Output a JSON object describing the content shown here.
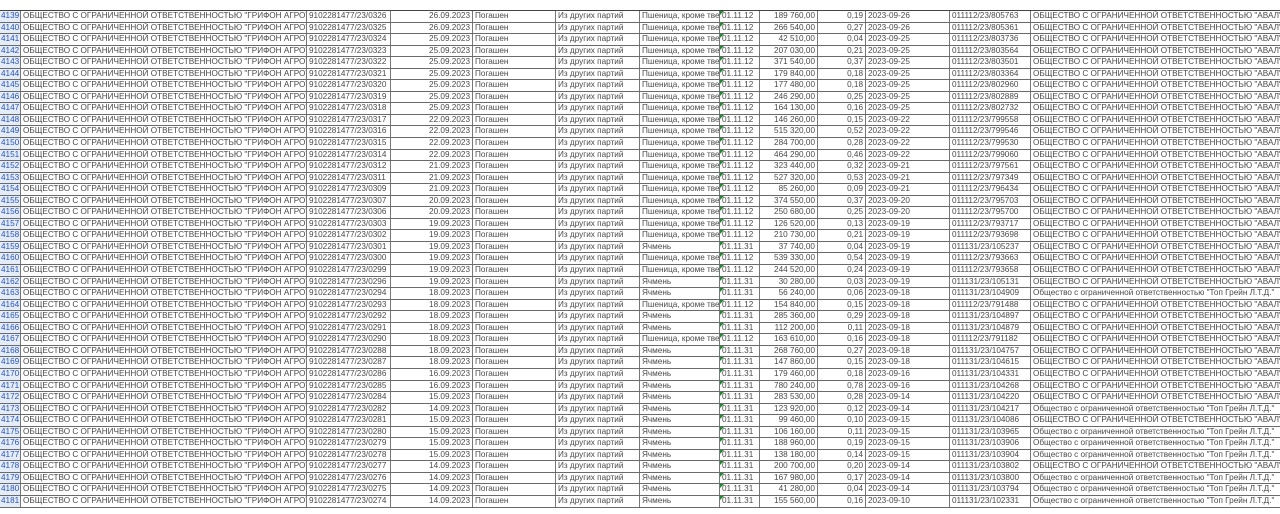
{
  "accent_colors": {
    "row_header_text": "#2a54b8",
    "row_header_bg": "#e4ecf7",
    "error_indicator": "#1e8a2e"
  },
  "rows": [
    [
      "4139",
      "ОБЩЕСТВО С ОГРАНИЧЕННОЙ ОТВЕТСТВЕННОСТЬЮ \"ГРИФОН АГРОТРАНС\"",
      "9102281477/23/0326",
      "26.09.2023",
      "Погашен",
      "Из других партий",
      "Пшеница, кроме тве",
      "01.11.12",
      "189 760,00",
      "0,19",
      "2023-09-26",
      "011112/23/805763",
      "ОБЩЕСТВО С ОГРАНИЧЕННОЙ ОТВЕТСТВЕННОСТЬЮ \"АВАЛ\""
    ],
    [
      "4140",
      "ОБЩЕСТВО С ОГРАНИЧЕННОЙ ОТВЕТСТВЕННОСТЬЮ \"ГРИФОН АГРОТРАНС\"",
      "9102281477/23/0325",
      "26.09.2023",
      "Погашен",
      "Из других партий",
      "Пшеница, кроме тве",
      "01.11.12",
      "266 540,00",
      "0,27",
      "2023-09-26",
      "011112/23/805361",
      "ОБЩЕСТВО С ОГРАНИЧЕННОЙ ОТВЕТСТВЕННОСТЬЮ \"АВАЛ\""
    ],
    [
      "4141",
      "ОБЩЕСТВО С ОГРАНИЧЕННОЙ ОТВЕТСТВЕННОСТЬЮ \"ГРИФОН АГРОТРАНС\"",
      "9102281477/23/0324",
      "25.09.2023",
      "Погашен",
      "Из других партий",
      "Пшеница, кроме тве",
      "01.11.12",
      "42 510,00",
      "0,04",
      "2023-09-25",
      "011112/23/803736",
      "ОБЩЕСТВО С ОГРАНИЧЕННОЙ ОТВЕТСТВЕННОСТЬЮ \"АВАЛ\""
    ],
    [
      "4142",
      "ОБЩЕСТВО С ОГРАНИЧЕННОЙ ОТВЕТСТВЕННОСТЬЮ \"ГРИФОН АГРОТРАНС\"",
      "9102281477/23/0323",
      "25.09.2023",
      "Погашен",
      "Из других партий",
      "Пшеница, кроме тве",
      "01.11.12",
      "207 030,00",
      "0,21",
      "2023-09-25",
      "011112/23/803564",
      "ОБЩЕСТВО С ОГРАНИЧЕННОЙ ОТВЕТСТВЕННОСТЬЮ \"АВАЛ\""
    ],
    [
      "4143",
      "ОБЩЕСТВО С ОГРАНИЧЕННОЙ ОТВЕТСТВЕННОСТЬЮ \"ГРИФОН АГРОТРАНС\"",
      "9102281477/23/0322",
      "25.09.2023",
      "Погашен",
      "Из других партий",
      "Пшеница, кроме тве",
      "01.11.12",
      "371 540,00",
      "0,37",
      "2023-09-25",
      "011112/23/803501",
      "ОБЩЕСТВО С ОГРАНИЧЕННОЙ ОТВЕТСТВЕННОСТЬЮ \"АВАЛ\""
    ],
    [
      "4144",
      "ОБЩЕСТВО С ОГРАНИЧЕННОЙ ОТВЕТСТВЕННОСТЬЮ \"ГРИФОН АГРОТРАНС\"",
      "9102281477/23/0321",
      "25.09.2023",
      "Погашен",
      "Из других партий",
      "Пшеница, кроме тве",
      "01.11.12",
      "179 840,00",
      "0,18",
      "2023-09-25",
      "011112/23/803364",
      "ОБЩЕСТВО С ОГРАНИЧЕННОЙ ОТВЕТСТВЕННОСТЬЮ \"АВАЛ\""
    ],
    [
      "4145",
      "ОБЩЕСТВО С ОГРАНИЧЕННОЙ ОТВЕТСТВЕННОСТЬЮ \"ГРИФОН АГРОТРАНС\"",
      "9102281477/23/0320",
      "25.09.2023",
      "Погашен",
      "Из других партий",
      "Пшеница, кроме тве",
      "01.11.12",
      "177 480,00",
      "0,18",
      "2023-09-25",
      "011112/23/802960",
      "ОБЩЕСТВО С ОГРАНИЧЕННОЙ ОТВЕТСТВЕННОСТЬЮ \"АВАЛ\""
    ],
    [
      "4146",
      "ОБЩЕСТВО С ОГРАНИЧЕННОЙ ОТВЕТСТВЕННОСТЬЮ \"ГРИФОН АГРОТРАНС\"",
      "9102281477/23/0319",
      "25.09.2023",
      "Погашен",
      "Из других партий",
      "Пшеница, кроме тве",
      "01.11.12",
      "246 290,00",
      "0,25",
      "2023-09-25",
      "011112/23/802889",
      "ОБЩЕСТВО С ОГРАНИЧЕННОЙ ОТВЕТСТВЕННОСТЬЮ \"АВАЛ\""
    ],
    [
      "4147",
      "ОБЩЕСТВО С ОГРАНИЧЕННОЙ ОТВЕТСТВЕННОСТЬЮ \"ГРИФОН АГРОТРАНС\"",
      "9102281477/23/0318",
      "25.09.2023",
      "Погашен",
      "Из других партий",
      "Пшеница, кроме тве",
      "01.11.12",
      "164 130,00",
      "0,16",
      "2023-09-25",
      "011112/23/802732",
      "ОБЩЕСТВО С ОГРАНИЧЕННОЙ ОТВЕТСТВЕННОСТЬЮ \"АВАЛ\""
    ],
    [
      "4148",
      "ОБЩЕСТВО С ОГРАНИЧЕННОЙ ОТВЕТСТВЕННОСТЬЮ \"ГРИФОН АГРОТРАНС\"",
      "9102281477/23/0317",
      "22.09.2023",
      "Погашен",
      "Из других партий",
      "Пшеница, кроме тве",
      "01.11.12",
      "146 260,00",
      "0,15",
      "2023-09-22",
      "011112/23/799558",
      "ОБЩЕСТВО С ОГРАНИЧЕННОЙ ОТВЕТСТВЕННОСТЬЮ \"АВАЛ\""
    ],
    [
      "4149",
      "ОБЩЕСТВО С ОГРАНИЧЕННОЙ ОТВЕТСТВЕННОСТЬЮ \"ГРИФОН АГРОТРАНС\"",
      "9102281477/23/0316",
      "22.09.2023",
      "Погашен",
      "Из других партий",
      "Пшеница, кроме тве",
      "01.11.12",
      "515 320,00",
      "0,52",
      "2023-09-22",
      "011112/23/799546",
      "ОБЩЕСТВО С ОГРАНИЧЕННОЙ ОТВЕТСТВЕННОСТЬЮ \"АВАЛ\""
    ],
    [
      "4150",
      "ОБЩЕСТВО С ОГРАНИЧЕННОЙ ОТВЕТСТВЕННОСТЬЮ \"ГРИФОН АГРОТРАНС\"",
      "9102281477/23/0315",
      "22.09.2023",
      "Погашен",
      "Из других партий",
      "Пшеница, кроме тве",
      "01.11.12",
      "284 700,00",
      "0,28",
      "2023-09-22",
      "011112/23/799530",
      "ОБЩЕСТВО С ОГРАНИЧЕННОЙ ОТВЕТСТВЕННОСТЬЮ \"АВАЛ\""
    ],
    [
      "4151",
      "ОБЩЕСТВО С ОГРАНИЧЕННОЙ ОТВЕТСТВЕННОСТЬЮ \"ГРИФОН АГРОТРАНС\"",
      "9102281477/23/0314",
      "22.09.2023",
      "Погашен",
      "Из других партий",
      "Пшеница, кроме тве",
      "01.11.12",
      "464 290,00",
      "0,46",
      "2023-09-22",
      "011112/23/799060",
      "ОБЩЕСТВО С ОГРАНИЧЕННОЙ ОТВЕТСТВЕННОСТЬЮ \"АВАЛ\""
    ],
    [
      "4152",
      "ОБЩЕСТВО С ОГРАНИЧЕННОЙ ОТВЕТСТВЕННОСТЬЮ \"ГРИФОН АГРОТРАНС\"",
      "9102281477/23/0312",
      "21.09.2023",
      "Погашен",
      "Из других партий",
      "Пшеница, кроме тве",
      "01.11.12",
      "323 440,00",
      "0,32",
      "2023-09-21",
      "011112/23/797561",
      "ОБЩЕСТВО С ОГРАНИЧЕННОЙ ОТВЕТСТВЕННОСТЬЮ \"АВАЛ\""
    ],
    [
      "4153",
      "ОБЩЕСТВО С ОГРАНИЧЕННОЙ ОТВЕТСТВЕННОСТЬЮ \"ГРИФОН АГРОТРАНС\"",
      "9102281477/23/0311",
      "21.09.2023",
      "Погашен",
      "Из других партий",
      "Пшеница, кроме тве",
      "01.11.12",
      "527 320,00",
      "0,53",
      "2023-09-21",
      "011112/23/797349",
      "ОБЩЕСТВО С ОГРАНИЧЕННОЙ ОТВЕТСТВЕННОСТЬЮ \"АВАЛ\""
    ],
    [
      "4154",
      "ОБЩЕСТВО С ОГРАНИЧЕННОЙ ОТВЕТСТВЕННОСТЬЮ \"ГРИФОН АГРОТРАНС\"",
      "9102281477/23/0309",
      "21.09.2023",
      "Погашен",
      "Из других партий",
      "Пшеница, кроме тве",
      "01.11.12",
      "85 260,00",
      "0,09",
      "2023-09-21",
      "011112/23/796434",
      "ОБЩЕСТВО С ОГРАНИЧЕННОЙ ОТВЕТСТВЕННОСТЬЮ \"АВАЛ\""
    ],
    [
      "4155",
      "ОБЩЕСТВО С ОГРАНИЧЕННОЙ ОТВЕТСТВЕННОСТЬЮ \"ГРИФОН АГРОТРАНС\"",
      "9102281477/23/0307",
      "20.09.2023",
      "Погашен",
      "Из других партий",
      "Пшеница, кроме тве",
      "01.11.12",
      "374 550,00",
      "0,37",
      "2023-09-20",
      "011112/23/795703",
      "ОБЩЕСТВО С ОГРАНИЧЕННОЙ ОТВЕТСТВЕННОСТЬЮ \"АВАЛ\""
    ],
    [
      "4156",
      "ОБЩЕСТВО С ОГРАНИЧЕННОЙ ОТВЕТСТВЕННОСТЬЮ \"ГРИФОН АГРОТРАНС\"",
      "9102281477/23/0306",
      "20.09.2023",
      "Погашен",
      "Из других партий",
      "Пшеница, кроме тве",
      "01.11.12",
      "250 680,00",
      "0,25",
      "2023-09-20",
      "011112/23/795700",
      "ОБЩЕСТВО С ОГРАНИЧЕННОЙ ОТВЕТСТВЕННОСТЬЮ \"АВАЛ\""
    ],
    [
      "4157",
      "ОБЩЕСТВО С ОГРАНИЧЕННОЙ ОТВЕТСТВЕННОСТЬЮ \"ГРИФОН АГРОТРАНС\"",
      "9102281477/23/0303",
      "19.09.2023",
      "Погашен",
      "Из других партий",
      "Пшеница, кроме тве",
      "01.11.12",
      "126 520,00",
      "0,13",
      "2023-09-19",
      "011112/23/793717",
      "ОБЩЕСТВО С ОГРАНИЧЕННОЙ ОТВЕТСТВЕННОСТЬЮ \"АВАЛ\""
    ],
    [
      "4158",
      "ОБЩЕСТВО С ОГРАНИЧЕННОЙ ОТВЕТСТВЕННОСТЬЮ \"ГРИФОН АГРОТРАНС\"",
      "9102281477/23/0302",
      "19.09.2023",
      "Погашен",
      "Из других партий",
      "Пшеница, кроме тве",
      "01.11.12",
      "210 730,00",
      "0,21",
      "2023-09-19",
      "011112/23/793698",
      "ОБЩЕСТВО С ОГРАНИЧЕННОЙ ОТВЕТСТВЕННОСТЬЮ \"АВАЛ\""
    ],
    [
      "4159",
      "ОБЩЕСТВО С ОГРАНИЧЕННОЙ ОТВЕТСТВЕННОСТЬЮ \"ГРИФОН АГРОТРАНС\"",
      "9102281477/23/0301",
      "19.09.2023",
      "Погашен",
      "Из других партий",
      "Ячмень",
      "01.11.31",
      "37 740,00",
      "0,04",
      "2023-09-19",
      "011131/23/105237",
      "ОБЩЕСТВО С ОГРАНИЧЕННОЙ ОТВЕТСТВЕННОСТЬЮ \"АВАЛ\""
    ],
    [
      "4160",
      "ОБЩЕСТВО С ОГРАНИЧЕННОЙ ОТВЕТСТВЕННОСТЬЮ \"ГРИФОН АГРОТРАНС\"",
      "9102281477/23/0300",
      "19.09.2023",
      "Погашен",
      "Из других партий",
      "Пшеница, кроме тве",
      "01.11.12",
      "539 330,00",
      "0,54",
      "2023-09-19",
      "011112/23/793663",
      "ОБЩЕСТВО С ОГРАНИЧЕННОЙ ОТВЕТСТВЕННОСТЬЮ \"АВАЛ\""
    ],
    [
      "4161",
      "ОБЩЕСТВО С ОГРАНИЧЕННОЙ ОТВЕТСТВЕННОСТЬЮ \"ГРИФОН АГРОТРАНС\"",
      "9102281477/23/0299",
      "19.09.2023",
      "Погашен",
      "Из других партий",
      "Пшеница, кроме тве",
      "01.11.12",
      "244 520,00",
      "0,24",
      "2023-09-19",
      "011112/23/793658",
      "ОБЩЕСТВО С ОГРАНИЧЕННОЙ ОТВЕТСТВЕННОСТЬЮ \"АВАЛ\""
    ],
    [
      "4162",
      "ОБЩЕСТВО С ОГРАНИЧЕННОЙ ОТВЕТСТВЕННОСТЬЮ \"ГРИФОН АГРОТРАНС\"",
      "9102281477/23/0296",
      "19.09.2023",
      "Погашен",
      "Из других партий",
      "Ячмень",
      "01.11.31",
      "30 280,00",
      "0,03",
      "2023-09-19",
      "011131/23/105131",
      "ОБЩЕСТВО С ОГРАНИЧЕННОЙ ОТВЕТСТВЕННОСТЬЮ \"АВАЛ\""
    ],
    [
      "4163",
      "ОБЩЕСТВО С ОГРАНИЧЕННОЙ ОТВЕТСТВЕННОСТЬЮ \"ГРИФОН АГРОТРАНС\"",
      "9102281477/23/0294",
      "18.09.2023",
      "Погашен",
      "Из других партий",
      "Ячмень",
      "01.11.31",
      "56 240,00",
      "0,06",
      "2023-09-18",
      "011131/23/104909",
      "Общество с ограниченной ответственностью \"Топ Грейн Л.Т.Д.\""
    ],
    [
      "4164",
      "ОБЩЕСТВО С ОГРАНИЧЕННОЙ ОТВЕТСТВЕННОСТЬЮ \"ГРИФОН АГРОТРАНС\"",
      "9102281477/23/0293",
      "18.09.2023",
      "Погашен",
      "Из других партий",
      "Пшеница, кроме тве",
      "01.11.12",
      "154 840,00",
      "0,15",
      "2023-09-18",
      "011112/23/791488",
      "ОБЩЕСТВО С ОГРАНИЧЕННОЙ ОТВЕТСТВЕННОСТЬЮ \"АВАЛ\""
    ],
    [
      "4165",
      "ОБЩЕСТВО С ОГРАНИЧЕННОЙ ОТВЕТСТВЕННОСТЬЮ \"ГРИФОН АГРОТРАНС\"",
      "9102281477/23/0292",
      "18.09.2023",
      "Погашен",
      "Из других партий",
      "Ячмень",
      "01.11.31",
      "285 360,00",
      "0,29",
      "2023-09-18",
      "011131/23/104897",
      "ОБЩЕСТВО С ОГРАНИЧЕННОЙ ОТВЕТСТВЕННОСТЬЮ \"АВАЛ\""
    ],
    [
      "4166",
      "ОБЩЕСТВО С ОГРАНИЧЕННОЙ ОТВЕТСТВЕННОСТЬЮ \"ГРИФОН АГРОТРАНС\"",
      "9102281477/23/0291",
      "18.09.2023",
      "Погашен",
      "Из других партий",
      "Ячмень",
      "01.11.31",
      "112 200,00",
      "0,11",
      "2023-09-18",
      "011131/23/104879",
      "ОБЩЕСТВО С ОГРАНИЧЕННОЙ ОТВЕТСТВЕННОСТЬЮ \"АВАЛ\""
    ],
    [
      "4167",
      "ОБЩЕСТВО С ОГРАНИЧЕННОЙ ОТВЕТСТВЕННОСТЬЮ \"ГРИФОН АГРОТРАНС\"",
      "9102281477/23/0290",
      "18.09.2023",
      "Погашен",
      "Из других партий",
      "Пшеница, кроме тве",
      "01.11.12",
      "163 610,00",
      "0,16",
      "2023-09-18",
      "011112/23/791182",
      "ОБЩЕСТВО С ОГРАНИЧЕННОЙ ОТВЕТСТВЕННОСТЬЮ \"АВАЛ\""
    ],
    [
      "4168",
      "ОБЩЕСТВО С ОГРАНИЧЕННОЙ ОТВЕТСТВЕННОСТЬЮ \"ГРИФОН АГРОТРАНС\"",
      "9102281477/23/0288",
      "18.09.2023",
      "Погашен",
      "Из других партий",
      "Ячмень",
      "01.11.31",
      "268 760,00",
      "0,27",
      "2023-09-18",
      "011131/23/104757",
      "ОБЩЕСТВО С ОГРАНИЧЕННОЙ ОТВЕТСТВЕННОСТЬЮ \"АВАЛ\""
    ],
    [
      "4169",
      "ОБЩЕСТВО С ОГРАНИЧЕННОЙ ОТВЕТСТВЕННОСТЬЮ \"ГРИФОН АГРОТРАНС\"",
      "9102281477/23/0287",
      "18.09.2023",
      "Погашен",
      "Из других партий",
      "Ячмень",
      "01.11.31",
      "147 860,00",
      "0,15",
      "2023-09-18",
      "011131/23/104615",
      "ОБЩЕСТВО С ОГРАНИЧЕННОЙ ОТВЕТСТВЕННОСТЬЮ \"АВАЛ\""
    ],
    [
      "4170",
      "ОБЩЕСТВО С ОГРАНИЧЕННОЙ ОТВЕТСТВЕННОСТЬЮ \"ГРИФОН АГРОТРАНС\"",
      "9102281477/23/0286",
      "16.09.2023",
      "Погашен",
      "Из других партий",
      "Ячмень",
      "01.11.31",
      "179 460,00",
      "0,18",
      "2023-09-16",
      "011131/23/104331",
      "ОБЩЕСТВО С ОГРАНИЧЕННОЙ ОТВЕТСТВЕННОСТЬЮ \"АВАЛ\""
    ],
    [
      "4171",
      "ОБЩЕСТВО С ОГРАНИЧЕННОЙ ОТВЕТСТВЕННОСТЬЮ \"ГРИФОН АГРОТРАНС\"",
      "9102281477/23/0285",
      "16.09.2023",
      "Погашен",
      "Из других партий",
      "Ячмень",
      "01.11.31",
      "780 240,00",
      "0,78",
      "2023-09-16",
      "011131/23/104268",
      "ОБЩЕСТВО С ОГРАНИЧЕННОЙ ОТВЕТСТВЕННОСТЬЮ \"АВАЛ\""
    ],
    [
      "4172",
      "ОБЩЕСТВО С ОГРАНИЧЕННОЙ ОТВЕТСТВЕННОСТЬЮ \"ГРИФОН АГРОТРАНС\"",
      "9102281477/23/0284",
      "15.09.2023",
      "Погашен",
      "Из других партий",
      "Ячмень",
      "01.11.31",
      "283 530,00",
      "0,28",
      "2023-09-14",
      "011131/23/104220",
      "ОБЩЕСТВО С ОГРАНИЧЕННОЙ ОТВЕТСТВЕННОСТЬЮ \"АВАЛ\""
    ],
    [
      "4173",
      "ОБЩЕСТВО С ОГРАНИЧЕННОЙ ОТВЕТСТВЕННОСТЬЮ \"ГРИФОН АГРОТРАНС\"",
      "9102281477/23/0282",
      "14.09.2023",
      "Погашен",
      "Из других партий",
      "Ячмень",
      "01.11.31",
      "123 920,00",
      "0,12",
      "2023-09-14",
      "011131/23/104217",
      "Общество с ограниченной ответственностью \"Топ Грейн Л.Т.Д.\""
    ],
    [
      "4174",
      "ОБЩЕСТВО С ОГРАНИЧЕННОЙ ОТВЕТСТВЕННОСТЬЮ \"ГРИФОН АГРОТРАНС\"",
      "9102281477/23/0281",
      "15.09.2023",
      "Погашен",
      "Из других партий",
      "Ячмень",
      "01.11.31",
      "99 460,00",
      "0,10",
      "2023-09-15",
      "011131/23/104086",
      "ОБЩЕСТВО С ОГРАНИЧЕННОЙ ОТВЕТСТВЕННОСТЬЮ \"АВАЛ\""
    ],
    [
      "4175",
      "ОБЩЕСТВО С ОГРАНИЧЕННОЙ ОТВЕТСТВЕННОСТЬЮ \"ГРИФОН АГРОТРАНС\"",
      "9102281477/23/0280",
      "15.09.2023",
      "Погашен",
      "Из других партий",
      "Ячмень",
      "01.11.31",
      "106 160,00",
      "0,11",
      "2023-09-15",
      "011131/23/103965",
      "Общество с ограниченной ответственностью \"Топ Грейн Л.Т.Д.\""
    ],
    [
      "4176",
      "ОБЩЕСТВО С ОГРАНИЧЕННОЙ ОТВЕТСТВЕННОСТЬЮ \"ГРИФОН АГРОТРАНС\"",
      "9102281477/23/0279",
      "15.09.2023",
      "Погашен",
      "Из других партий",
      "Ячмень",
      "01.11.31",
      "188 960,00",
      "0,19",
      "2023-09-15",
      "011131/23/103906",
      "Общество с ограниченной ответственностью \"Топ Грейн Л.Т.Д.\""
    ],
    [
      "4177",
      "ОБЩЕСТВО С ОГРАНИЧЕННОЙ ОТВЕТСТВЕННОСТЬЮ \"ГРИФОН АГРОТРАНС\"",
      "9102281477/23/0278",
      "15.09.2023",
      "Погашен",
      "Из других партий",
      "Ячмень",
      "01.11.31",
      "138 180,00",
      "0,14",
      "2023-09-15",
      "011131/23/103904",
      "Общество с ограниченной ответственностью \"Топ Грейн Л.Т.Д.\""
    ],
    [
      "4178",
      "ОБЩЕСТВО С ОГРАНИЧЕННОЙ ОТВЕТСТВЕННОСТЬЮ \"ГРИФОН АГРОТРАНС\"",
      "9102281477/23/0277",
      "14.09.2023",
      "Погашен",
      "Из других партий",
      "Ячмень",
      "01.11.31",
      "200 700,00",
      "0,20",
      "2023-09-14",
      "011131/23/103802",
      "ОБЩЕСТВО С ОГРАНИЧЕННОЙ ОТВЕТСТВЕННОСТЬЮ \"АВАЛ\""
    ],
    [
      "4179",
      "ОБЩЕСТВО С ОГРАНИЧЕННОЙ ОТВЕТСТВЕННОСТЬЮ \"ГРИФОН АГРОТРАНС\"",
      "9102281477/23/0276",
      "14.09.2023",
      "Погашен",
      "Из других партий",
      "Ячмень",
      "01.11.31",
      "167 980,00",
      "0,17",
      "2023-09-14",
      "011131/23/103800",
      "Общество с ограниченной ответственностью \"Топ Грейн Л.Т.Д.\""
    ],
    [
      "4180",
      "ОБЩЕСТВО С ОГРАНИЧЕННОЙ ОТВЕТСТВЕННОСТЬЮ \"ГРИФОН АГРОТРАНС\"",
      "9102281477/23/0275",
      "14.09.2023",
      "Погашен",
      "Из других партий",
      "Ячмень",
      "01.11.31",
      "41 280,00",
      "0,04",
      "2023-09-14",
      "011131/23/103794",
      "Общество с ограниченной ответственностью \"Топ Грейн Л.Т.Д.\""
    ],
    [
      "4181",
      "ОБЩЕСТВО С ОГРАНИЧЕННОЙ ОТВЕТСТВЕННОСТЬЮ \"ГРИФОН АГРОТРАНС\"",
      "9102281477/23/0274",
      "14.09.2023",
      "Погашен",
      "Из других партий",
      "Ячмень",
      "01.11.31",
      "155 560,00",
      "0,16",
      "2023-09-10",
      "011131/23/102331",
      "Общество с ограниченной ответственностью \"Топ Грейн Л.Т.Д.\""
    ]
  ]
}
